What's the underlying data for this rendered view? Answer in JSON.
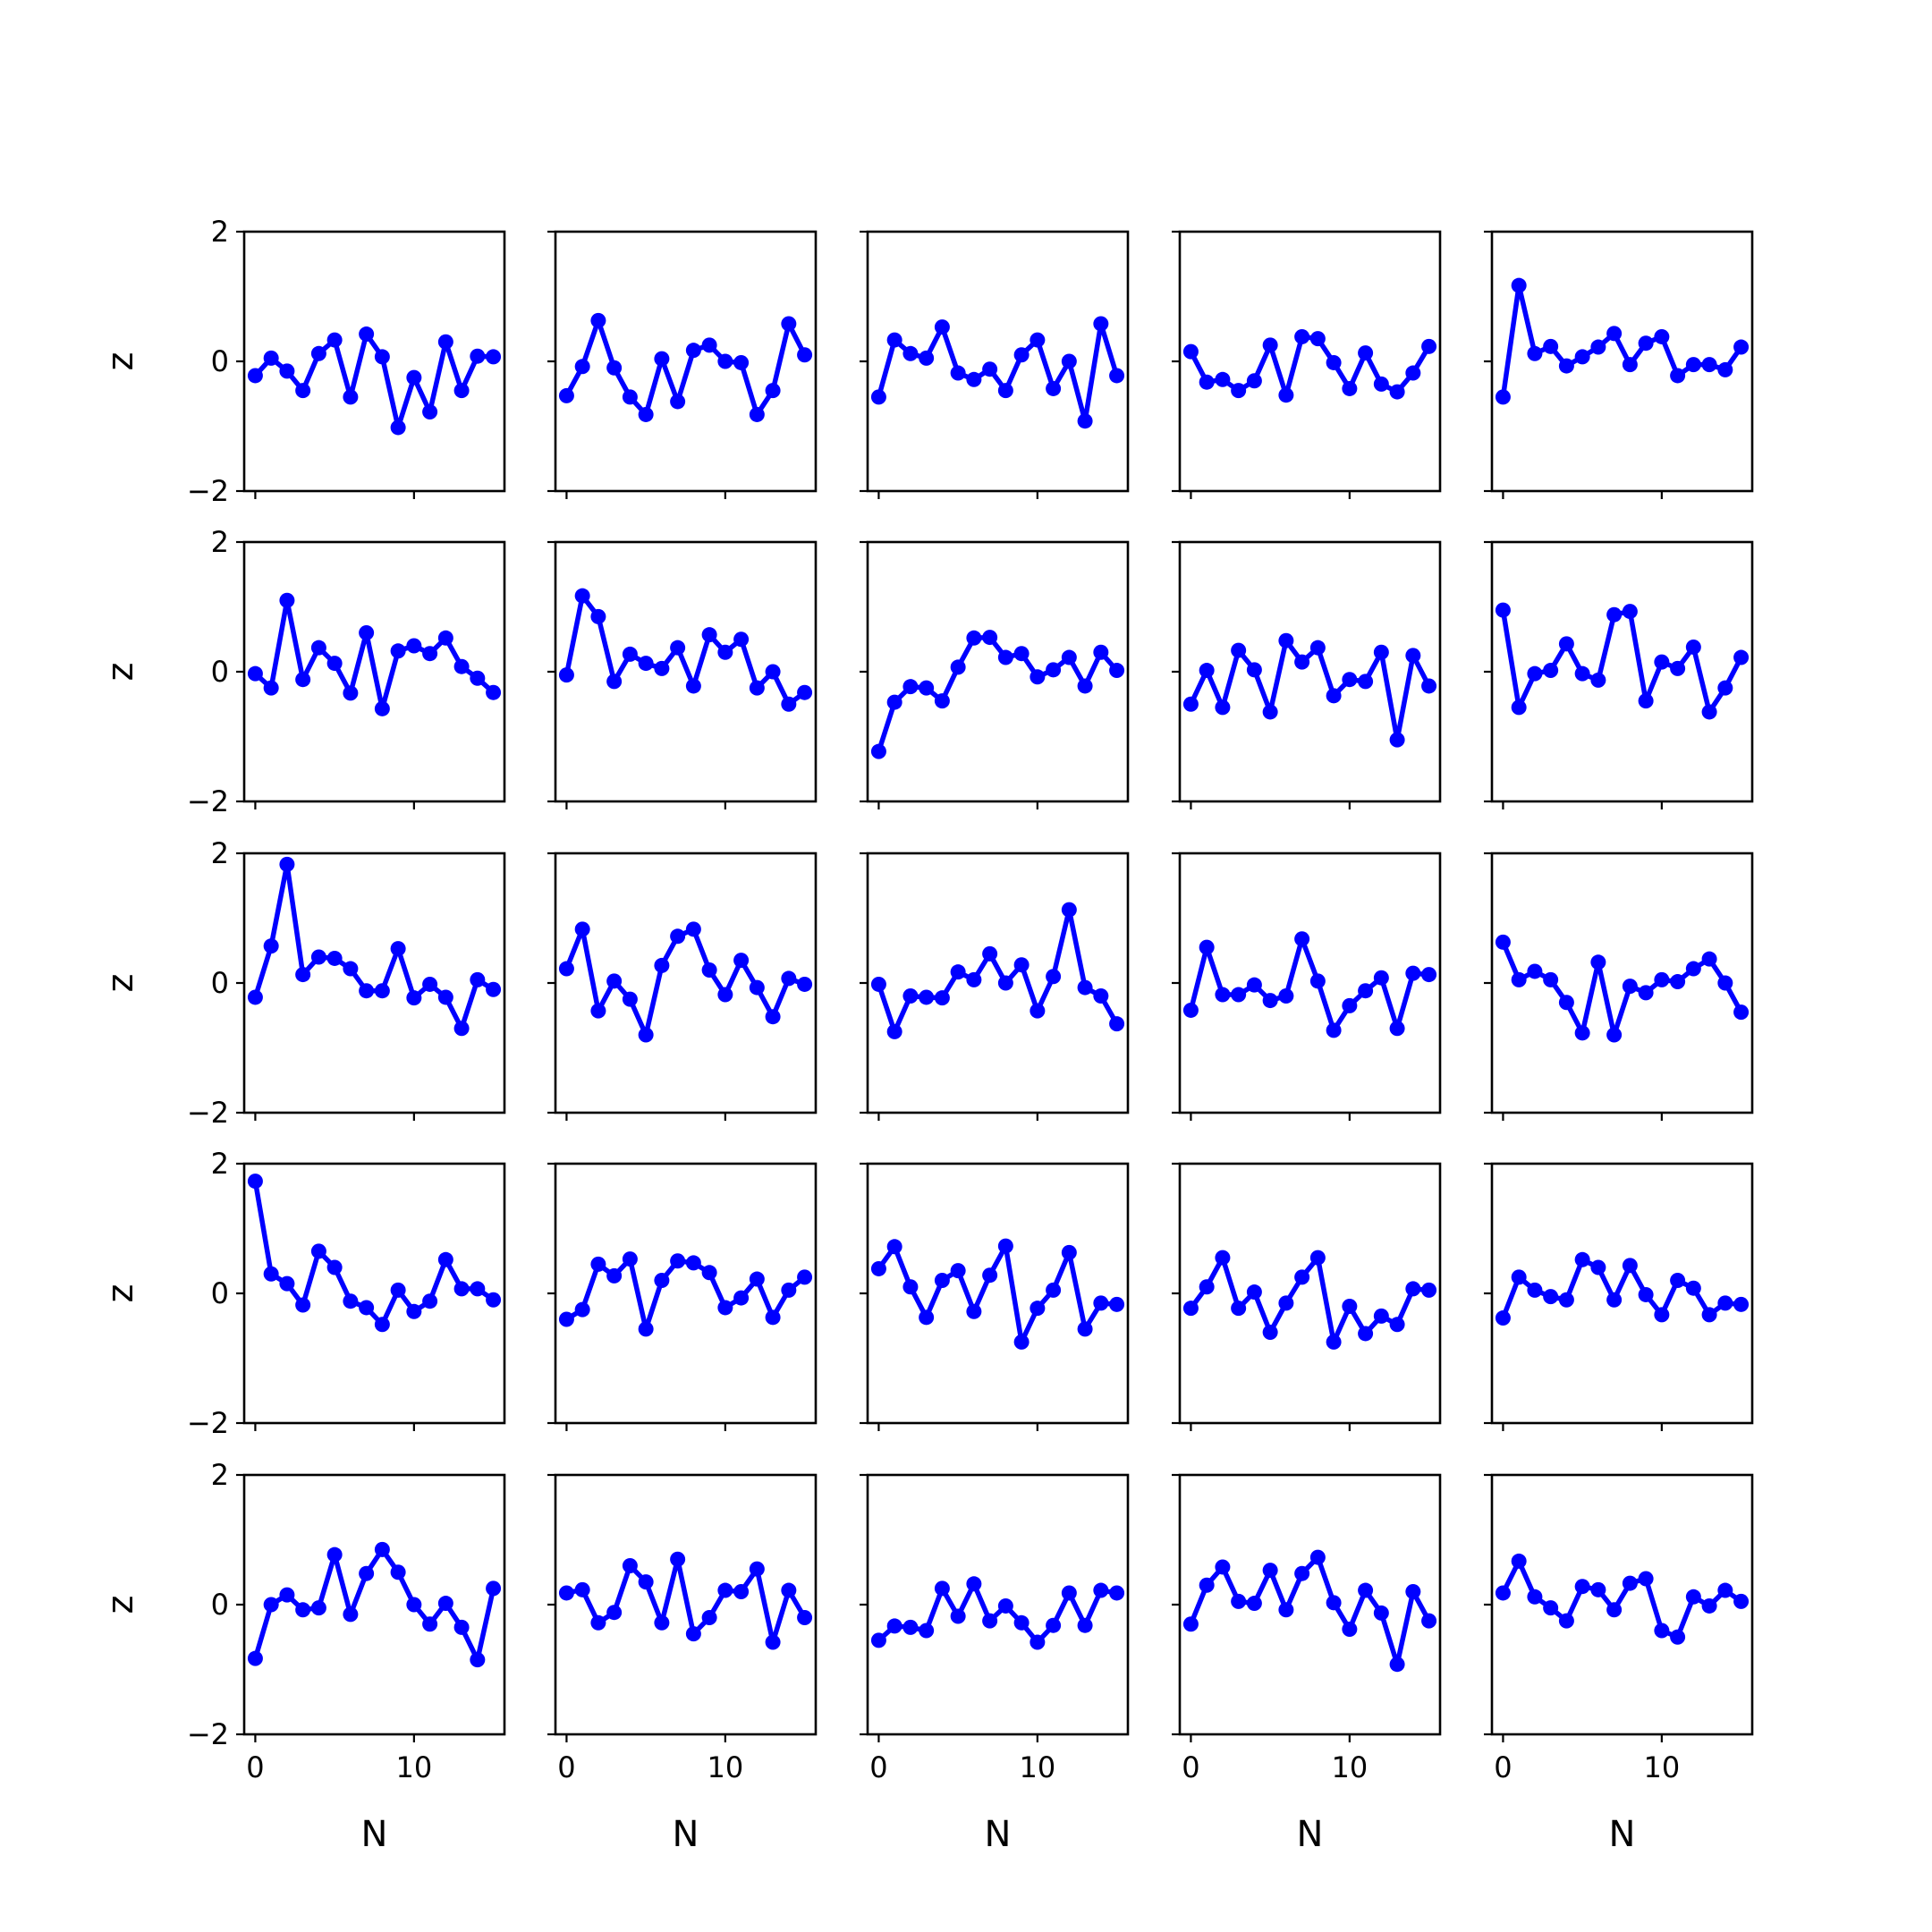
{
  "chart_data": {
    "type": "line",
    "layout": "5x5 grid of subplots, shared axes",
    "color": "#0000ff",
    "marker": "circle",
    "xlabel": "N",
    "ylabel": "z",
    "xlim": [
      -0.7,
      15.7
    ],
    "ylim": [
      -2,
      2
    ],
    "xticks": [
      0,
      10
    ],
    "xtick_labels": [
      "0",
      "10"
    ],
    "yticks": [
      -2,
      0,
      2
    ],
    "ytick_labels": [
      "−2",
      "0",
      "2"
    ],
    "x": [
      0,
      1,
      2,
      3,
      4,
      5,
      6,
      7,
      8,
      9,
      10,
      11,
      12,
      13,
      14,
      15
    ],
    "panels": [
      [
        [
          -0.22,
          0.05,
          -0.15,
          -0.45,
          0.12,
          0.33,
          -0.55,
          0.42,
          0.07,
          -1.02,
          -0.25,
          -0.78,
          0.3,
          -0.45,
          0.08,
          0.07
        ],
        [
          -0.53,
          -0.08,
          0.63,
          -0.1,
          -0.55,
          -0.82,
          0.04,
          -0.62,
          0.17,
          0.25,
          0.0,
          -0.02,
          -0.82,
          -0.45,
          0.58,
          0.1
        ],
        [
          -0.55,
          0.33,
          0.12,
          0.05,
          0.53,
          -0.18,
          -0.28,
          -0.12,
          -0.45,
          0.1,
          0.33,
          -0.42,
          0.0,
          -0.92,
          0.58,
          -0.22
        ],
        [
          0.15,
          -0.32,
          -0.28,
          -0.45,
          -0.3,
          0.25,
          -0.52,
          0.38,
          0.35,
          -0.02,
          -0.42,
          0.13,
          -0.35,
          -0.47,
          -0.18,
          0.23
        ],
        [
          -0.55,
          1.17,
          0.12,
          0.23,
          -0.07,
          0.07,
          0.22,
          0.43,
          -0.05,
          0.28,
          0.38,
          -0.22,
          -0.05,
          -0.05,
          -0.13,
          0.22
        ]
      ],
      [
        [
          -0.03,
          -0.25,
          1.1,
          -0.12,
          0.37,
          0.13,
          -0.33,
          0.6,
          -0.57,
          0.32,
          0.4,
          0.28,
          0.52,
          0.08,
          -0.1,
          -0.32
        ],
        [
          -0.05,
          1.17,
          0.85,
          -0.15,
          0.27,
          0.13,
          0.05,
          0.37,
          -0.22,
          0.57,
          0.3,
          0.5,
          -0.25,
          0.0,
          -0.5,
          -0.32
        ],
        [
          -1.23,
          -0.47,
          -0.23,
          -0.25,
          -0.45,
          0.07,
          0.52,
          0.53,
          0.22,
          0.28,
          -0.08,
          0.03,
          0.22,
          -0.22,
          0.3,
          0.02
        ],
        [
          -0.5,
          0.02,
          -0.55,
          0.33,
          0.03,
          -0.62,
          0.48,
          0.15,
          0.37,
          -0.37,
          -0.12,
          -0.15,
          0.3,
          -1.05,
          0.25,
          -0.22
        ],
        [
          0.95,
          -0.55,
          -0.03,
          0.02,
          0.43,
          -0.03,
          -0.13,
          0.88,
          0.93,
          -0.45,
          0.15,
          0.05,
          0.38,
          -0.62,
          -0.25,
          0.22
        ]
      ],
      [
        [
          -0.22,
          0.57,
          1.83,
          0.13,
          0.4,
          0.38,
          0.22,
          -0.12,
          -0.12,
          0.53,
          -0.23,
          -0.02,
          -0.22,
          -0.7,
          0.05,
          -0.1
        ],
        [
          0.22,
          0.83,
          -0.43,
          0.03,
          -0.25,
          -0.8,
          0.27,
          0.72,
          0.83,
          0.2,
          -0.18,
          0.35,
          -0.07,
          -0.52,
          0.07,
          -0.02
        ],
        [
          -0.02,
          -0.75,
          -0.2,
          -0.22,
          -0.23,
          0.17,
          0.05,
          0.45,
          0.0,
          0.28,
          -0.43,
          0.1,
          1.13,
          -0.07,
          -0.2,
          -0.63
        ],
        [
          -0.42,
          0.55,
          -0.18,
          -0.18,
          -0.03,
          -0.27,
          -0.2,
          0.68,
          0.03,
          -0.73,
          -0.35,
          -0.12,
          0.08,
          -0.7,
          0.15,
          0.13
        ],
        [
          0.63,
          0.05,
          0.18,
          0.05,
          -0.3,
          -0.77,
          0.32,
          -0.8,
          -0.05,
          -0.15,
          0.05,
          0.02,
          0.22,
          0.37,
          0.0,
          -0.45
        ]
      ],
      [
        [
          1.73,
          0.3,
          0.15,
          -0.18,
          0.65,
          0.4,
          -0.12,
          -0.22,
          -0.48,
          0.05,
          -0.28,
          -0.12,
          0.52,
          0.07,
          0.07,
          -0.1
        ],
        [
          -0.4,
          -0.25,
          0.45,
          0.27,
          0.53,
          -0.55,
          0.2,
          0.5,
          0.47,
          0.32,
          -0.22,
          -0.07,
          0.22,
          -0.37,
          0.05,
          0.25
        ],
        [
          0.38,
          0.72,
          0.1,
          -0.37,
          0.2,
          0.35,
          -0.28,
          0.28,
          0.73,
          -0.75,
          -0.23,
          0.05,
          0.63,
          -0.55,
          -0.15,
          -0.17
        ],
        [
          -0.23,
          0.1,
          0.55,
          -0.23,
          0.02,
          -0.6,
          -0.15,
          0.25,
          0.55,
          -0.75,
          -0.2,
          -0.62,
          -0.35,
          -0.48,
          0.07,
          0.05
        ],
        [
          -0.38,
          0.25,
          0.05,
          -0.05,
          -0.1,
          0.52,
          0.4,
          -0.1,
          0.43,
          -0.02,
          -0.33,
          0.2,
          0.08,
          -0.33,
          -0.15,
          -0.17
        ]
      ],
      [
        [
          -0.83,
          0.0,
          0.15,
          -0.08,
          -0.05,
          0.77,
          -0.15,
          0.48,
          0.85,
          0.5,
          0.0,
          -0.3,
          0.02,
          -0.35,
          -0.85,
          0.25
        ],
        [
          0.18,
          0.23,
          -0.28,
          -0.12,
          0.6,
          0.35,
          -0.28,
          0.7,
          -0.45,
          -0.2,
          0.22,
          0.2,
          0.55,
          -0.58,
          0.22,
          -0.2
        ],
        [
          -0.55,
          -0.33,
          -0.35,
          -0.4,
          0.25,
          -0.18,
          0.32,
          -0.25,
          -0.02,
          -0.28,
          -0.58,
          -0.32,
          0.18,
          -0.32,
          0.22,
          0.18
        ],
        [
          -0.3,
          0.3,
          0.58,
          0.05,
          0.02,
          0.53,
          -0.08,
          0.48,
          0.73,
          0.03,
          -0.38,
          0.22,
          -0.13,
          -0.92,
          0.2,
          -0.25
        ],
        [
          0.18,
          0.67,
          0.12,
          -0.05,
          -0.25,
          0.28,
          0.23,
          -0.08,
          0.33,
          0.4,
          -0.4,
          -0.5,
          0.12,
          -0.02,
          0.22,
          0.05
        ]
      ]
    ]
  }
}
